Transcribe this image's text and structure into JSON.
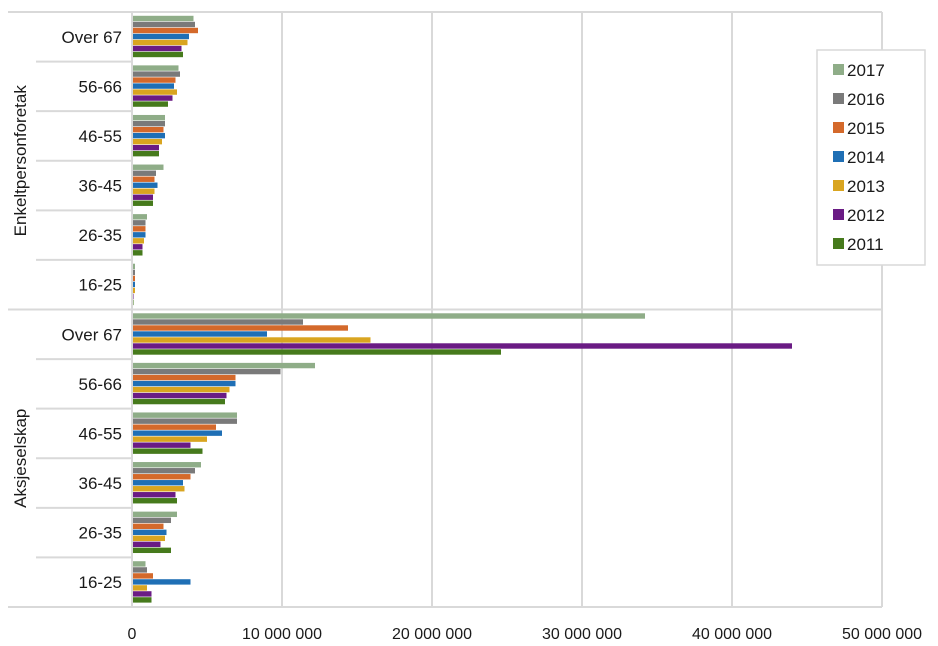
{
  "chart_data": {
    "type": "bar",
    "orientation": "horizontal",
    "groups": [
      {
        "name": "Enkeltpersonforetak",
        "categories": [
          "Over 67",
          "56-66",
          "46-55",
          "36-45",
          "26-35",
          "16-25"
        ]
      },
      {
        "name": "Aksjeselskap",
        "categories": [
          "Over 67",
          "56-66",
          "46-55",
          "36-45",
          "26-35",
          "16-25"
        ]
      }
    ],
    "series": [
      {
        "name": "2017",
        "color": "#8fad88",
        "values": [
          4100000,
          3100000,
          2200000,
          2100000,
          1000000,
          200000,
          34200000,
          12200000,
          7000000,
          4600000,
          3000000,
          900000
        ]
      },
      {
        "name": "2016",
        "color": "#7a7a7a",
        "values": [
          4200000,
          3200000,
          2200000,
          1600000,
          900000,
          200000,
          11400000,
          9900000,
          7000000,
          4200000,
          2600000,
          1000000
        ]
      },
      {
        "name": "2015",
        "color": "#d4692b",
        "values": [
          4400000,
          2900000,
          2100000,
          1500000,
          900000,
          200000,
          14400000,
          6900000,
          5600000,
          3900000,
          2100000,
          1400000
        ]
      },
      {
        "name": "2014",
        "color": "#1f6fb5",
        "values": [
          3800000,
          2800000,
          2200000,
          1700000,
          900000,
          200000,
          9000000,
          6900000,
          6000000,
          3400000,
          2300000,
          3900000
        ]
      },
      {
        "name": "2013",
        "color": "#d9a520",
        "values": [
          3700000,
          3000000,
          2000000,
          1500000,
          800000,
          200000,
          15900000,
          6500000,
          5000000,
          3500000,
          2200000,
          1000000
        ]
      },
      {
        "name": "2012",
        "color": "#6a1b84",
        "values": [
          3300000,
          2700000,
          1800000,
          1400000,
          700000,
          100000,
          44000000,
          6300000,
          3900000,
          2900000,
          1900000,
          1300000
        ]
      },
      {
        "name": "2011",
        "color": "#467a1c",
        "values": [
          3400000,
          2400000,
          1800000,
          1400000,
          700000,
          100000,
          24600000,
          6200000,
          4700000,
          3000000,
          2600000,
          1300000
        ]
      }
    ],
    "xlim": [
      0,
      50000000
    ],
    "xticks": [
      "0",
      "10 000 000",
      "20 000 000",
      "30 000 000",
      "40 000 000",
      "50 000 000"
    ],
    "grid": true,
    "legend": {
      "position": "right",
      "order": [
        "2017",
        "2016",
        "2015",
        "2014",
        "2013",
        "2012",
        "2011"
      ]
    }
  }
}
